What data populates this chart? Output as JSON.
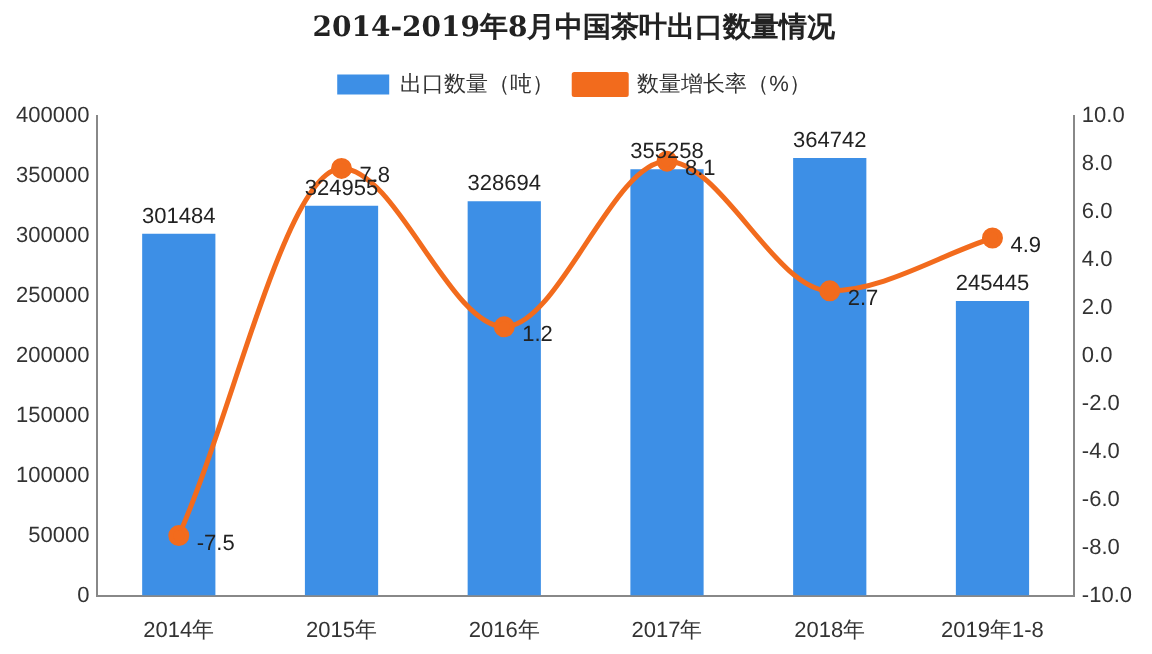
{
  "chart_data": {
    "type": "bar",
    "title": "2014-2019年8月中国茶叶出口数量情况",
    "categories": [
      "2014年",
      "2015年",
      "2016年",
      "2017年",
      "2018年",
      "2019年1-8"
    ],
    "series": [
      {
        "name": "出口数量（吨）",
        "color": "#3d8fe6",
        "values": [
          301484,
          324955,
          328694,
          355258,
          364742,
          245445
        ]
      },
      {
        "name": "数量增长率（%）",
        "type": "line",
        "axis": "y2",
        "color": "#f26b1d",
        "values": [
          -7.5,
          7.8,
          1.2,
          8.1,
          2.7,
          4.9
        ]
      }
    ],
    "ylim": [
      0,
      400000
    ],
    "yticks": [
      0,
      50000,
      100000,
      150000,
      200000,
      250000,
      300000,
      350000,
      400000
    ],
    "y2lim": [
      -10,
      10
    ],
    "y2ticks": [
      {
        "value": -10,
        "label": "-10.0"
      },
      {
        "value": -8,
        "label": "-8.0"
      },
      {
        "value": -6,
        "label": "-6.0"
      },
      {
        "value": -4,
        "label": "-4.0"
      },
      {
        "value": -2,
        "label": "-2.0"
      },
      {
        "value": 0,
        "label": "0.0"
      },
      {
        "value": 2,
        "label": "2.0"
      },
      {
        "value": 4,
        "label": "4.0"
      },
      {
        "value": 6,
        "label": "6.0"
      },
      {
        "value": 8,
        "label": "8.0"
      },
      {
        "value": 10,
        "label": "10.0"
      }
    ],
    "legend": "top",
    "marker": "circle",
    "grid": false,
    "data_labels": true
  }
}
